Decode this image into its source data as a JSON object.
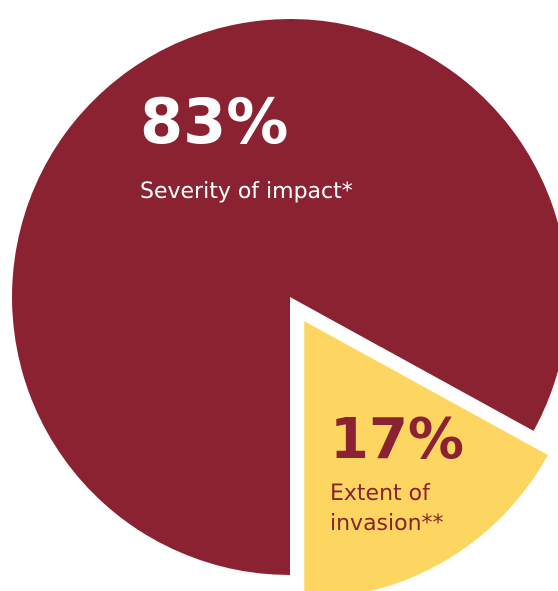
{
  "chart_data": {
    "type": "pie",
    "title": "",
    "slices": [
      {
        "value": 83,
        "value_label": "83%",
        "label_lines": [
          "Severity of impact*"
        ],
        "color": "#8b2232",
        "text_color": "#ffffff",
        "exploded": false
      },
      {
        "value": 17,
        "value_label": "17%",
        "label_lines": [
          "Extent of",
          "invasion**"
        ],
        "color": "#fdd662",
        "text_color": "#8b2232",
        "exploded": true
      }
    ]
  }
}
